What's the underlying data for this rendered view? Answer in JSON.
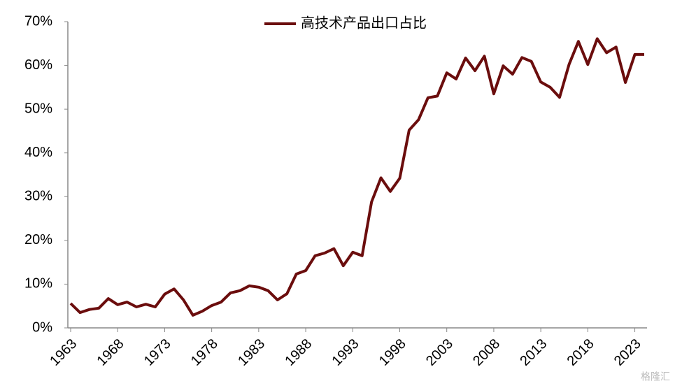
{
  "chart_data": {
    "type": "line",
    "legend_position": "top",
    "watermark": "格隆汇",
    "x": [
      1963,
      1964,
      1965,
      1966,
      1967,
      1968,
      1969,
      1970,
      1971,
      1972,
      1973,
      1974,
      1975,
      1976,
      1977,
      1978,
      1979,
      1980,
      1981,
      1982,
      1983,
      1984,
      1985,
      1986,
      1987,
      1988,
      1989,
      1990,
      1991,
      1992,
      1993,
      1994,
      1995,
      1996,
      1997,
      1998,
      1999,
      2000,
      2001,
      2002,
      2003,
      2004,
      2005,
      2006,
      2007,
      2008,
      2009,
      2010,
      2011,
      2012,
      2013,
      2014,
      2015,
      2016,
      2017,
      2018,
      2019,
      2020,
      2021,
      2022,
      2023,
      2024
    ],
    "series": [
      {
        "name": "高技术产品出口占比",
        "color": "#6b0d0d",
        "values": [
          5.6,
          3.5,
          4.2,
          4.5,
          6.7,
          5.3,
          5.9,
          4.8,
          5.4,
          4.8,
          7.7,
          8.9,
          6.4,
          2.9,
          3.8,
          5.1,
          5.9,
          8.0,
          8.5,
          9.6,
          9.3,
          8.5,
          6.4,
          7.8,
          12.3,
          13.1,
          16.5,
          17.1,
          18.1,
          14.2,
          17.3,
          16.5,
          28.8,
          34.3,
          31.2,
          34.2,
          45.2,
          47.6,
          52.6,
          53.0,
          58.3,
          56.9,
          61.7,
          58.8,
          62.1,
          53.5,
          59.9,
          58.0,
          61.8,
          60.9,
          56.2,
          55.0,
          52.7,
          60.2,
          65.5,
          60.2,
          66.1,
          62.9,
          64.2,
          56.1,
          62.5,
          62.5
        ]
      }
    ],
    "xlim": [
      1963,
      2024
    ],
    "xticks": [
      1963,
      1968,
      1973,
      1978,
      1983,
      1988,
      1993,
      1998,
      2003,
      2008,
      2013,
      2018,
      2023
    ],
    "ylim": [
      0,
      70
    ],
    "yticks": [
      {
        "value": 0,
        "label": "0%"
      },
      {
        "value": 10,
        "label": "10%"
      },
      {
        "value": 20,
        "label": "20%"
      },
      {
        "value": 30,
        "label": "30%"
      },
      {
        "value": 40,
        "label": "40%"
      },
      {
        "value": 50,
        "label": "50%"
      },
      {
        "value": 60,
        "label": "60%"
      },
      {
        "value": 70,
        "label": "70%"
      }
    ]
  }
}
